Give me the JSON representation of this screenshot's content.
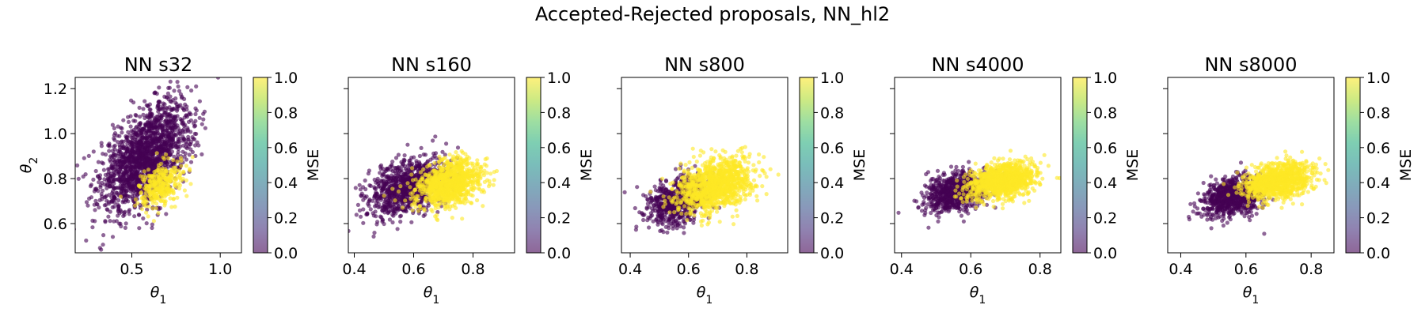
{
  "figure": {
    "title": "Accepted-Rejected proposals, NN_hl2"
  },
  "colors": {
    "rejected": "#440154",
    "accepted": "#fde725"
  },
  "colorbar": {
    "label": "MSE",
    "range": [
      0.0,
      1.0
    ],
    "ticks": [
      0.0,
      0.2,
      0.4,
      0.6,
      0.8,
      1.0
    ],
    "tick_labels": [
      "0.0",
      "0.2",
      "0.4",
      "0.6",
      "0.8",
      "1.0"
    ],
    "colormap": "viridis",
    "alpha": 0.6
  },
  "chart_data": [
    {
      "type": "scatter",
      "title": "NN s32",
      "xlabel": "θ1",
      "ylabel": "θ2",
      "xlim": [
        0.18,
        1.12
      ],
      "ylim": [
        0.47,
        1.25
      ],
      "xticks": [
        0.5,
        1.0
      ],
      "xtick_labels": [
        "0.5",
        "1.0"
      ],
      "yticks": [
        0.6,
        0.8,
        1.0,
        1.2
      ],
      "ytick_labels": [
        "0.6",
        "0.8",
        "1.0",
        "1.2"
      ],
      "series": [
        {
          "value": 0,
          "center": [
            0.58,
            0.9
          ],
          "spread": [
            0.13,
            0.12
          ],
          "rho": 0.55,
          "count": 1700
        },
        {
          "value": 1,
          "center": [
            0.66,
            0.77
          ],
          "spread": [
            0.06,
            0.05
          ],
          "rho": 0.4,
          "count": 320
        }
      ]
    },
    {
      "type": "scatter",
      "title": "NN s160",
      "xlabel": "θ1",
      "ylabel": "",
      "xlim": [
        0.38,
        0.94
      ],
      "ylim": [
        0.47,
        1.25
      ],
      "xticks": [
        0.4,
        0.6,
        0.8
      ],
      "xtick_labels": [
        "0.4",
        "0.6",
        "0.8"
      ],
      "yticks": [
        0.6,
        0.8,
        1.0,
        1.2
      ],
      "ytick_labels": [
        "",
        "",
        "",
        ""
      ],
      "series": [
        {
          "value": 0,
          "center": [
            0.58,
            0.76
          ],
          "spread": [
            0.07,
            0.065
          ],
          "rho": 0.4,
          "count": 900
        },
        {
          "value": 1,
          "center": [
            0.72,
            0.78
          ],
          "spread": [
            0.055,
            0.055
          ],
          "rho": 0.35,
          "count": 1000
        }
      ]
    },
    {
      "type": "scatter",
      "title": "NN s800",
      "xlabel": "θ1",
      "ylabel": "",
      "xlim": [
        0.37,
        0.94
      ],
      "ylim": [
        0.47,
        1.25
      ],
      "xticks": [
        0.4,
        0.6,
        0.8
      ],
      "xtick_labels": [
        "0.4",
        "0.6",
        "0.8"
      ],
      "yticks": [
        0.6,
        0.8,
        1.0,
        1.2
      ],
      "ytick_labels": [
        "",
        "",
        "",
        ""
      ],
      "series": [
        {
          "value": 0,
          "center": [
            0.56,
            0.7
          ],
          "spread": [
            0.055,
            0.055
          ],
          "rho": 0.3,
          "count": 700
        },
        {
          "value": 1,
          "center": [
            0.69,
            0.77
          ],
          "spread": [
            0.065,
            0.06
          ],
          "rho": 0.3,
          "count": 1100
        }
      ]
    },
    {
      "type": "scatter",
      "title": "NN s4000",
      "xlabel": "θ1",
      "ylabel": "",
      "xlim": [
        0.38,
        0.86
      ],
      "ylim": [
        0.47,
        1.25
      ],
      "xticks": [
        0.4,
        0.6,
        0.8
      ],
      "xtick_labels": [
        "0.4",
        "0.6",
        "0.8"
      ],
      "yticks": [
        0.6,
        0.8,
        1.0,
        1.2
      ],
      "ytick_labels": [
        "",
        "",
        "",
        ""
      ],
      "series": [
        {
          "value": 0,
          "center": [
            0.56,
            0.74
          ],
          "spread": [
            0.045,
            0.045
          ],
          "rho": 0.3,
          "count": 800
        },
        {
          "value": 1,
          "center": [
            0.69,
            0.79
          ],
          "spread": [
            0.05,
            0.04
          ],
          "rho": 0.3,
          "count": 1000
        }
      ]
    },
    {
      "type": "scatter",
      "title": "NN s8000",
      "xlabel": "θ1",
      "ylabel": "",
      "xlim": [
        0.36,
        0.87
      ],
      "ylim": [
        0.47,
        1.25
      ],
      "xticks": [
        0.4,
        0.6,
        0.8
      ],
      "xtick_labels": [
        "0.4",
        "0.6",
        "0.8"
      ],
      "yticks": [
        0.6,
        0.8,
        1.0,
        1.2
      ],
      "ytick_labels": [
        "",
        "",
        "",
        ""
      ],
      "series": [
        {
          "value": 0,
          "center": [
            0.56,
            0.72
          ],
          "spread": [
            0.05,
            0.045
          ],
          "rho": 0.3,
          "count": 800
        },
        {
          "value": 1,
          "center": [
            0.7,
            0.79
          ],
          "spread": [
            0.05,
            0.04
          ],
          "rho": 0.3,
          "count": 1000
        }
      ]
    }
  ]
}
